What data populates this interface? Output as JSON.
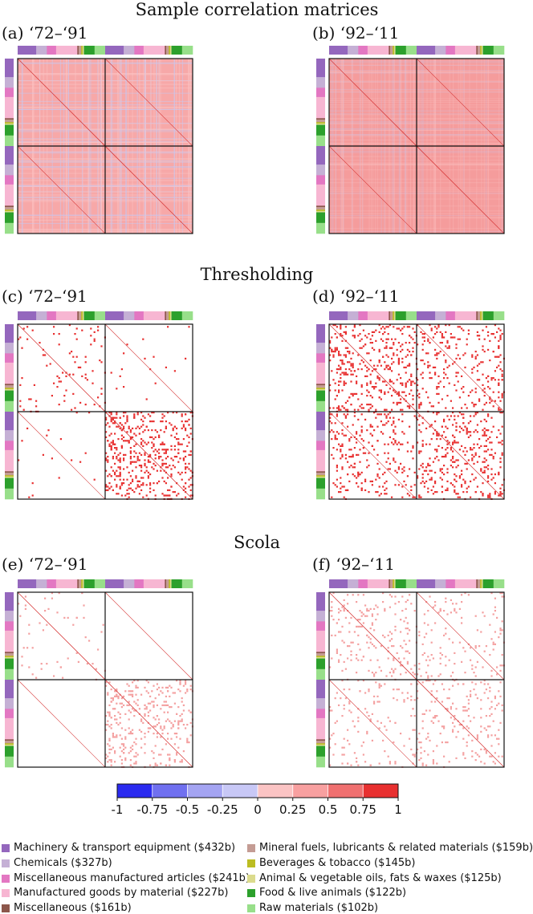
{
  "sections": {
    "sample": "Sample correlation matrices",
    "thresholding": "Thresholding",
    "scola": "Scola"
  },
  "panels": [
    {
      "id": "a",
      "label": "(a) ‘72–‘91"
    },
    {
      "id": "b",
      "label": "(b) ‘92–‘11"
    },
    {
      "id": "c",
      "label": "(c) ‘72–‘91"
    },
    {
      "id": "d",
      "label": "(d) ‘92–‘11"
    },
    {
      "id": "e",
      "label": "(e) ‘72–‘91"
    },
    {
      "id": "f",
      "label": "(f) ‘92–‘11"
    }
  ],
  "colors": {
    "machinery": "#9467bd",
    "chemicals": "#c5b0d5",
    "misc_manufactured": "#e377c2",
    "manufactured_goods": "#f7b6d2",
    "miscellaneous": "#8c564b",
    "mineral_fuels": "#c49c94",
    "beverages": "#bcbd22",
    "animal_oils": "#dbdb8d",
    "food": "#2ca02c",
    "raw_materials": "#98df8a",
    "cell_fill_full": "#f7a6a6",
    "cell_fill_strong": "#e83030"
  },
  "chart_data": {
    "type": "heatmap",
    "colorbar": {
      "min": -1,
      "max": 1,
      "ticks": [
        "-1",
        "-0.75",
        "-0.5",
        "-0.25",
        "0",
        "0.25",
        "0.5",
        "0.75",
        "1"
      ],
      "bins": [
        "#2b2bf0",
        "#7070f0",
        "#a4a4f2",
        "#c8c8f6",
        "#fbc4c4",
        "#f8a0a0",
        "#f07070",
        "#e83030"
      ]
    },
    "categories": [
      {
        "key": "machinery",
        "name": "Machinery & transport equipment ($432b)",
        "color": "#9467bd",
        "weight": 432
      },
      {
        "key": "chemicals",
        "name": "Chemicals ($327b)",
        "color": "#c5b0d5",
        "weight": 327
      },
      {
        "key": "misc_manufactured",
        "name": "Miscellaneous manufactured articles ($241b)",
        "color": "#e377c2",
        "weight": 241
      },
      {
        "key": "manufactured_goods",
        "name": "Manufactured goods by material ($227b)",
        "color": "#f7b6d2",
        "weight": 227
      },
      {
        "key": "miscellaneous",
        "name": "Miscellaneous ($161b)",
        "color": "#8c564b",
        "weight": 161
      },
      {
        "key": "mineral_fuels",
        "name": "Mineral fuels, lubricants & related materials ($159b)",
        "color": "#c49c94",
        "weight": 159
      },
      {
        "key": "beverages",
        "name": "Beverages & tobacco ($145b)",
        "color": "#bcbd22",
        "weight": 145
      },
      {
        "key": "animal_oils",
        "name": "Animal & vegetable oils, fats & waxes ($125b)",
        "color": "#dbdb8d",
        "weight": 125
      },
      {
        "key": "food",
        "name": "Food & live animals ($122b)",
        "color": "#2ca02c",
        "weight": 122
      },
      {
        "key": "raw_materials",
        "name": "Raw materials ($102b)",
        "color": "#98df8a",
        "weight": 102
      }
    ],
    "block_order": [
      "machinery",
      "chemicals",
      "misc_manufactured",
      "manufactured_goods",
      "miscellaneous",
      "mineral_fuels",
      "beverages",
      "animal_oils",
      "food",
      "raw_materials"
    ],
    "block_units": [
      14,
      8,
      7,
      16,
      1,
      2,
      1,
      1,
      8,
      8
    ],
    "panels": [
      {
        "id": "a",
        "method": "sample",
        "period": "‘72–‘91",
        "density": [
          [
            1.0,
            1.0
          ],
          [
            1.0,
            1.0
          ]
        ],
        "style": "full"
      },
      {
        "id": "b",
        "method": "sample",
        "period": "‘92–‘11",
        "density": [
          [
            1.0,
            1.0
          ],
          [
            1.0,
            1.0
          ]
        ],
        "style": "full"
      },
      {
        "id": "c",
        "method": "thresholding",
        "period": "‘72–‘91",
        "density": [
          [
            0.1,
            0.02
          ],
          [
            0.02,
            0.55
          ]
        ],
        "style": "sparse"
      },
      {
        "id": "d",
        "method": "thresholding",
        "period": "‘92–‘11",
        "density": [
          [
            0.45,
            0.3
          ],
          [
            0.3,
            0.4
          ]
        ],
        "style": "sparse"
      },
      {
        "id": "e",
        "method": "scola",
        "period": "‘72–‘91",
        "density": [
          [
            0.06,
            0.0
          ],
          [
            0.0,
            0.4
          ]
        ],
        "style": "sparse"
      },
      {
        "id": "f",
        "method": "scola",
        "period": "‘92–‘11",
        "density": [
          [
            0.22,
            0.15
          ],
          [
            0.15,
            0.22
          ]
        ],
        "style": "sparse"
      }
    ]
  }
}
